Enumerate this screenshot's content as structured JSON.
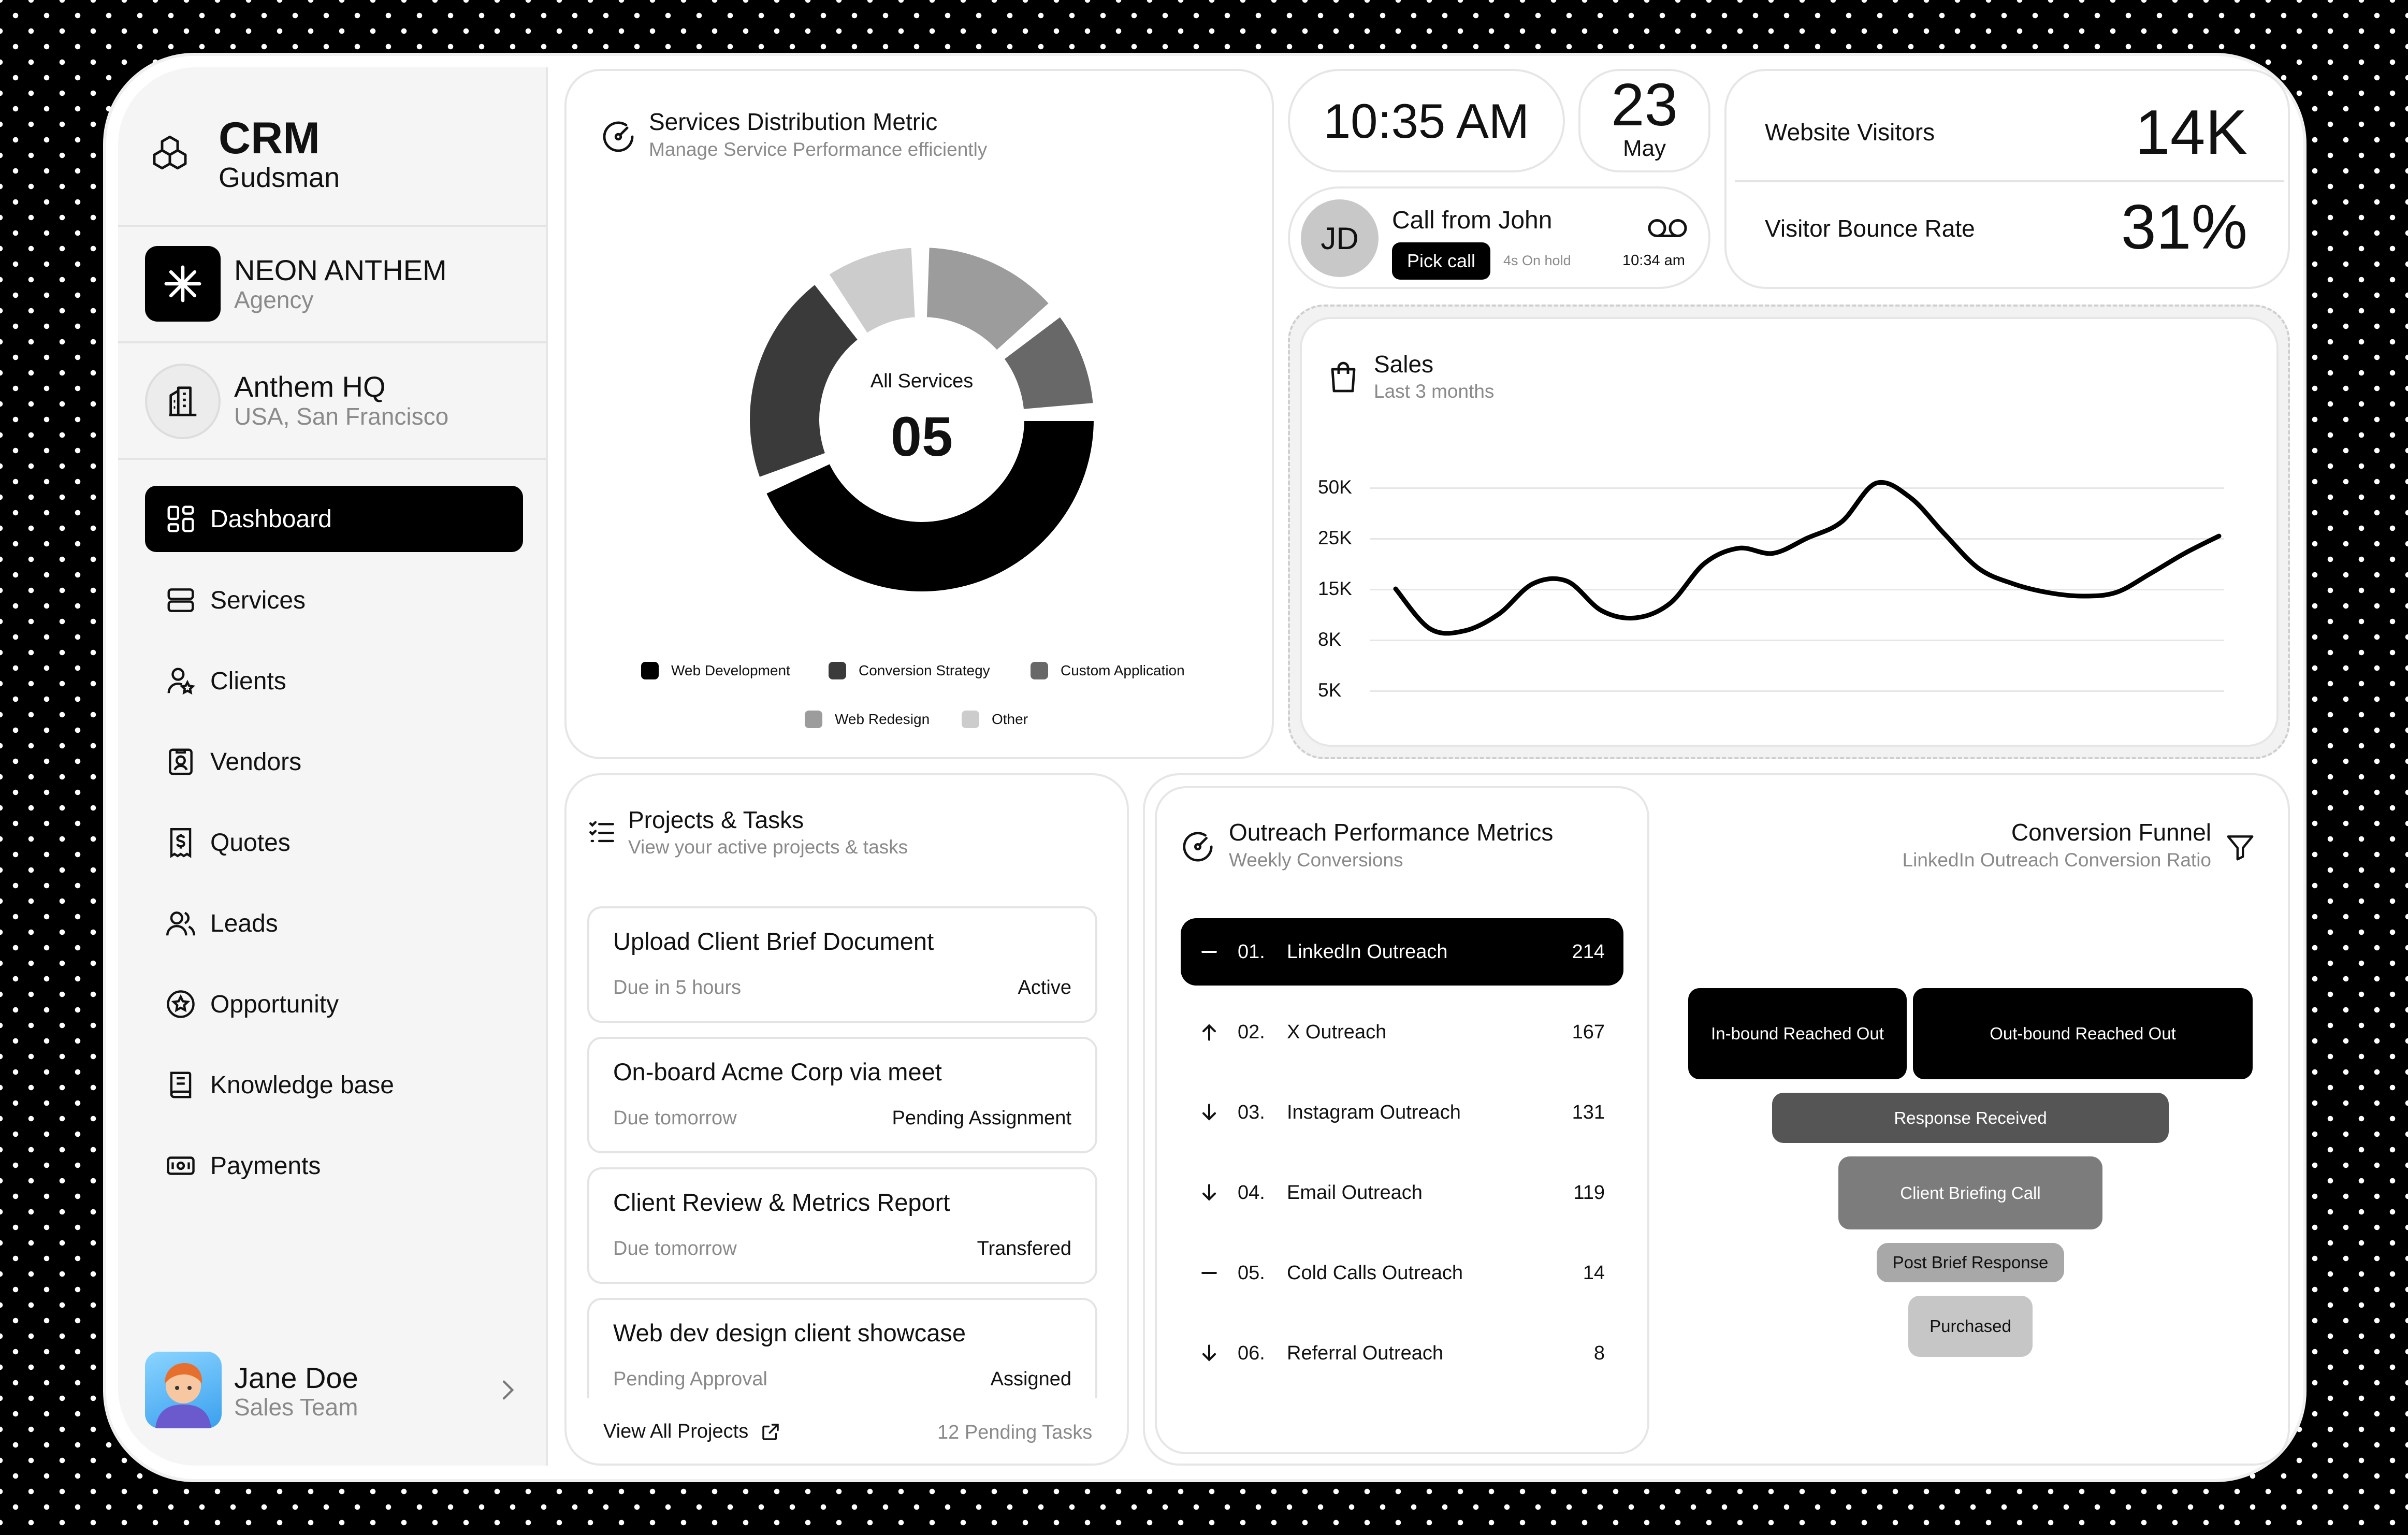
{
  "sidebar": {
    "brand_title": "CRM",
    "brand_sub": "Gudsman",
    "org_name": "NEON ANTHEM",
    "org_type": "Agency",
    "hq_name": "Anthem HQ",
    "hq_location": "USA, San Francisco",
    "items": [
      {
        "label": "Dashboard",
        "icon": "dashboard-icon",
        "active": true
      },
      {
        "label": "Services",
        "icon": "services-icon"
      },
      {
        "label": "Clients",
        "icon": "clients-icon"
      },
      {
        "label": "Vendors",
        "icon": "vendors-icon"
      },
      {
        "label": "Quotes",
        "icon": "quotes-icon"
      },
      {
        "label": "Leads",
        "icon": "leads-icon"
      },
      {
        "label": "Opportunity",
        "icon": "opportunity-icon"
      },
      {
        "label": "Knowledge base",
        "icon": "knowledge-base-icon"
      },
      {
        "label": "Payments",
        "icon": "payments-icon"
      }
    ],
    "user": {
      "name": "Jane Doe",
      "role": "Sales Team"
    }
  },
  "services": {
    "title": "Services Distribution Metric",
    "subtitle": "Manage Service Performance efficiently",
    "center_label": "All Services",
    "center_value": "05",
    "legend": [
      {
        "label": "Web Development",
        "color": "#000000"
      },
      {
        "label": "Conversion Strategy",
        "color": "#3a3a3a"
      },
      {
        "label": "Custom Application",
        "color": "#686868"
      },
      {
        "label": "Web Redesign",
        "color": "#9c9c9c"
      },
      {
        "label": "Other",
        "color": "#cccccc"
      }
    ]
  },
  "clock": {
    "time": "10:35 AM",
    "day": "23",
    "month": "May"
  },
  "call": {
    "initials": "JD",
    "title": "Call from John",
    "action": "Pick call",
    "hold": "4s On hold",
    "time": "10:34 am"
  },
  "stats": [
    {
      "label": "Website Visitors",
      "value": "14K"
    },
    {
      "label": "Visitor Bounce Rate",
      "value": "31%"
    }
  ],
  "sales": {
    "title": "Sales",
    "subtitle": "Last 3 months"
  },
  "chart_data": {
    "type": "line",
    "title": "Sales",
    "subtitle": "Last 3 months",
    "y_ticks": [
      "50K",
      "25K",
      "15K",
      "8K",
      "5K"
    ],
    "series": [
      {
        "values": [
          15000,
          9500,
          9200,
          11500,
          16000,
          16500,
          12000,
          11000,
          13000,
          20000,
          23000,
          22000,
          25000,
          33000,
          52000,
          45000,
          27000,
          19000,
          16000,
          14500,
          14000,
          14500,
          18000,
          22000,
          26000
        ]
      }
    ]
  },
  "projects": {
    "title": "Projects & Tasks",
    "subtitle": "View your active projects & tasks",
    "tasks": [
      {
        "title": "Upload Client Brief Document",
        "due": "Due in 5 hours",
        "status": "Active"
      },
      {
        "title": "On-board Acme Corp via meet",
        "due": "Due tomorrow",
        "status": "Pending Assignment"
      },
      {
        "title": "Client Review & Metrics Report",
        "due": "Due tomorrow",
        "status": "Transfered"
      },
      {
        "title": "Web dev design client showcase",
        "due": "Pending Approval",
        "status": "Assigned"
      }
    ],
    "view_all": "View All Projects",
    "pending": "12 Pending Tasks"
  },
  "outreach": {
    "title": "Outreach Performance Metrics",
    "subtitle": "Weekly Conversions",
    "rows": [
      {
        "num": "01.",
        "label": "LinkedIn Outreach",
        "value": "214",
        "trend": "flat",
        "active": true
      },
      {
        "num": "02.",
        "label": "X Outreach",
        "value": "167",
        "trend": "up"
      },
      {
        "num": "03.",
        "label": "Instagram Outreach",
        "value": "131",
        "trend": "down"
      },
      {
        "num": "04.",
        "label": "Email Outreach",
        "value": "119",
        "trend": "down"
      },
      {
        "num": "05.",
        "label": "Cold Calls Outreach",
        "value": "14",
        "trend": "flat"
      },
      {
        "num": "06.",
        "label": "Referral Outreach",
        "value": "8",
        "trend": "down"
      }
    ]
  },
  "funnel": {
    "title": "Conversion Funnel",
    "subtitle": "LinkedIn Outreach Conversion Ratio",
    "stages": [
      "In-bound Reached Out",
      "Out-bound Reached Out",
      "Response Received",
      "Client Briefing Call",
      "Post Brief Response",
      "Purchased"
    ]
  }
}
